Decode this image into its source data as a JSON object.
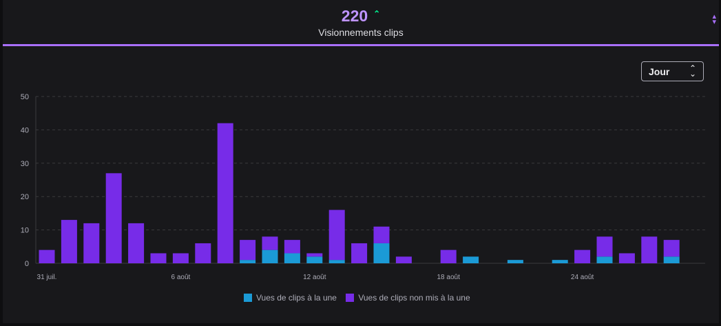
{
  "header": {
    "metric_value": "220",
    "trend_icon": "chevron-up-icon",
    "metric_label": "Visionnements clips",
    "sort_icon": "sort-arrows-icon"
  },
  "controls": {
    "period_dropdown_value": "Jour",
    "dropdown_icon": "chevron-up-down-icon"
  },
  "colors": {
    "accent": "#a970ff",
    "featured": "#1b9ad6",
    "non_featured": "#772ce8",
    "trend_up": "#00f593"
  },
  "chart_data": {
    "type": "bar",
    "stacked": true,
    "ylim": [
      0,
      50
    ],
    "yticks": [
      "0",
      "10",
      "20",
      "30",
      "40",
      "50"
    ],
    "grid": true,
    "legend_position": "bottom",
    "x_tick_labels": [
      "31 juil.",
      "6 août",
      "12 août",
      "18 août",
      "24 août"
    ],
    "categories_count": 30,
    "series": [
      {
        "name": "Vues de clips à la une",
        "values": [
          0,
          0,
          0,
          0,
          0,
          0,
          0,
          0,
          0,
          1,
          4,
          3,
          2,
          1,
          0,
          6,
          0,
          0,
          0,
          2,
          0,
          1,
          0,
          1,
          0,
          2,
          0,
          0,
          2,
          0
        ]
      },
      {
        "name": "Vues de clips non mis à la une",
        "values": [
          4,
          13,
          12,
          27,
          12,
          3,
          3,
          6,
          42,
          6,
          4,
          4,
          1,
          15,
          6,
          5,
          2,
          0,
          4,
          0,
          0,
          0,
          0,
          0,
          4,
          6,
          3,
          8,
          5,
          0
        ]
      }
    ]
  }
}
